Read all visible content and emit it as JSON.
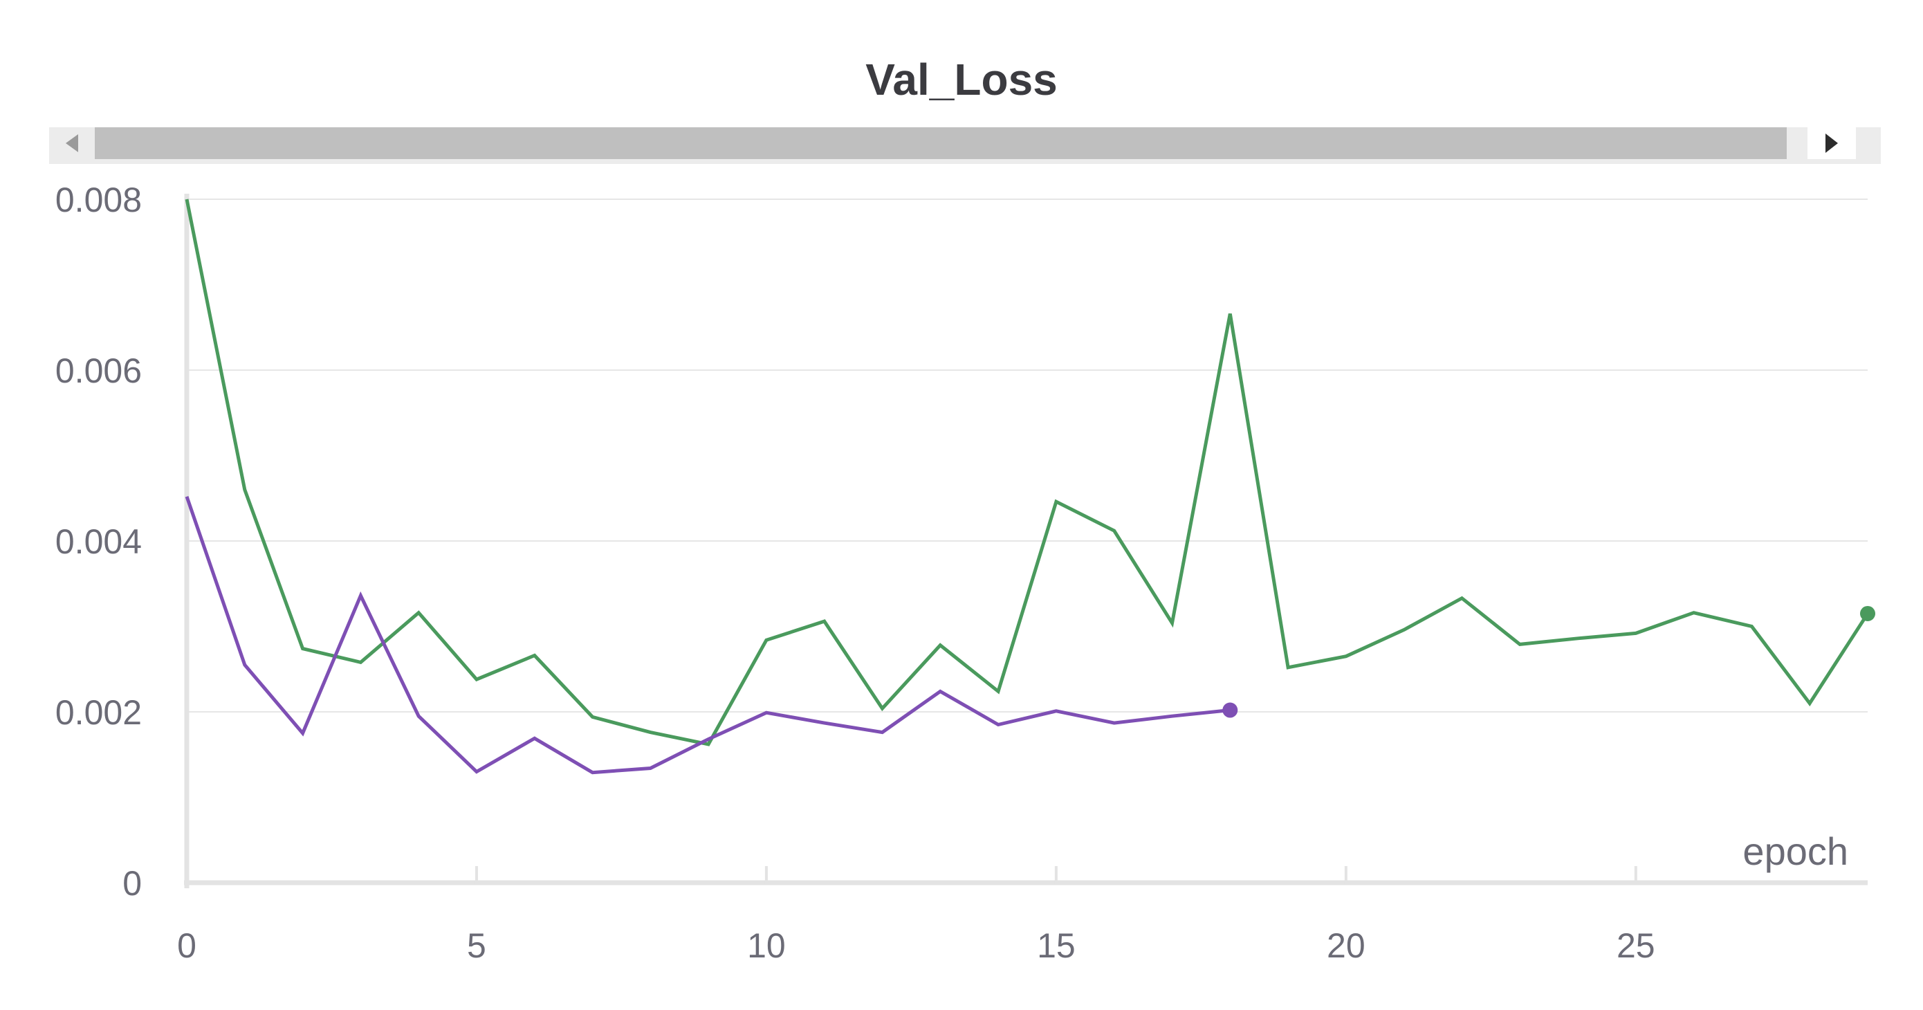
{
  "chart_data": {
    "type": "line",
    "title": "Val_Loss",
    "xlabel": "epoch",
    "ylabel": "",
    "xlim": [
      0,
      29
    ],
    "ylim": [
      0,
      0.008
    ],
    "x_ticks": [
      0,
      5,
      10,
      15,
      20,
      25
    ],
    "x_tick_labels": [
      "0",
      "5",
      "10",
      "15",
      "20",
      "25"
    ],
    "y_ticks": [
      0,
      0.002,
      0.004,
      0.006,
      0.008
    ],
    "y_tick_labels": [
      "0",
      "0.002",
      "0.004",
      "0.006",
      "0.008"
    ],
    "grid": true,
    "legend": "none",
    "series": [
      {
        "color": "#4a9a5d",
        "x": [
          0,
          1,
          2,
          3,
          4,
          5,
          6,
          7,
          8,
          9,
          10,
          11,
          12,
          13,
          14,
          15,
          16,
          17,
          18,
          19,
          20,
          21,
          22,
          23,
          24,
          25,
          26,
          27,
          28,
          29
        ],
        "values": [
          0.008,
          0.0046,
          0.00274,
          0.00258,
          0.00316,
          0.00238,
          0.00266,
          0.00194,
          0.00176,
          0.00162,
          0.00284,
          0.00306,
          0.00204,
          0.00278,
          0.00224,
          0.00446,
          0.00412,
          0.00304,
          0.00666,
          0.00252,
          0.00265,
          0.00296,
          0.00333,
          0.00279,
          0.00286,
          0.00292,
          0.00316,
          0.003,
          0.0021,
          0.00315
        ]
      },
      {
        "color": "#7e4fb4",
        "x": [
          0,
          1,
          2,
          3,
          4,
          5,
          6,
          7,
          8,
          9,
          10,
          11,
          12,
          13,
          14,
          15,
          16,
          17,
          18
        ],
        "values": [
          0.00452,
          0.00255,
          0.00175,
          0.00336,
          0.00195,
          0.0013,
          0.00169,
          0.00129,
          0.00134,
          0.00168,
          0.00199,
          0.00187,
          0.00176,
          0.00224,
          0.00185,
          0.00201,
          0.00187,
          0.00195,
          0.00202
        ]
      }
    ]
  },
  "scrollbar": {
    "left_icon": "arrow-left-icon",
    "right_icon": "arrow-right-icon"
  }
}
